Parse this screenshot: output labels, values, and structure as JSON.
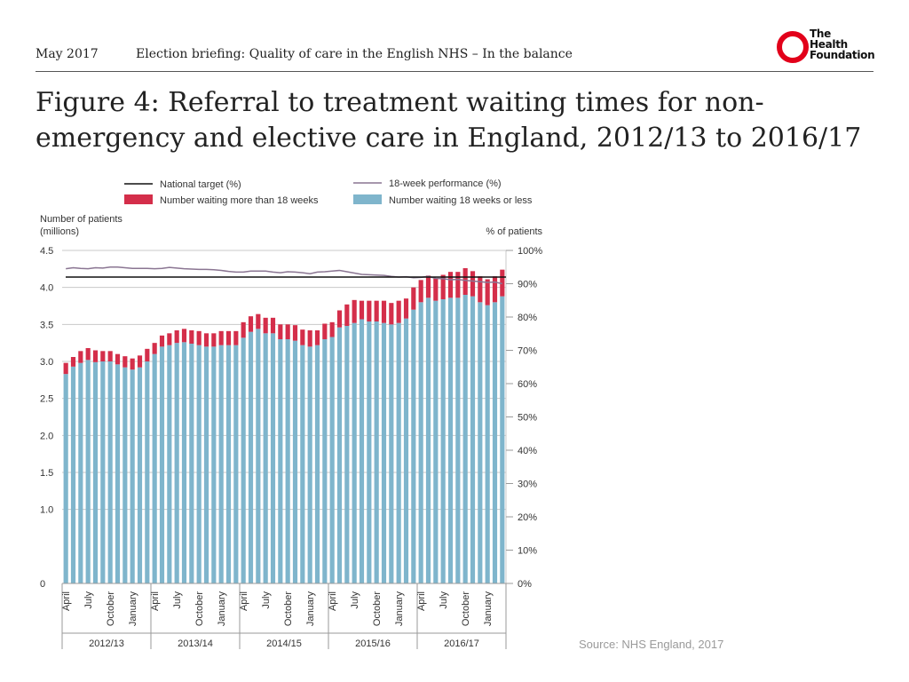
{
  "header": {
    "date": "May 2017",
    "title": "Election briefing: Quality of care in the English NHS – In the balance"
  },
  "logo": {
    "line1": "The",
    "line2": "Health",
    "line3": "Foundation"
  },
  "figure_title": "Figure 4: Referral to treatment waiting times for non-emergency and elective care in England, 2012/13 to 2016/17",
  "source": "Source: NHS England, 2017",
  "colors": {
    "under18": "#7fb5cc",
    "over18": "#d42e4a",
    "target": "#111111",
    "performance": "#8a7592",
    "grid": "#c8c8c8",
    "axis": "#9a9a9a"
  },
  "chart_data": {
    "type": "bar",
    "stacked": true,
    "months": [
      "April",
      "",
      "",
      "July",
      "",
      "",
      "October",
      "",
      "",
      "January",
      "",
      ""
    ],
    "years": [
      "2012/13",
      "2013/14",
      "2014/15",
      "2015/16",
      "2016/17"
    ],
    "left_axis_title": [
      "Number of patients",
      "(millions)"
    ],
    "right_axis_title": "% of patients",
    "left_ylim": [
      0,
      4.5
    ],
    "left_ticks": [
      "0",
      "1.0",
      "1.5",
      "2.0",
      "2.5",
      "3.0",
      "3.5",
      "4.0",
      "4.5"
    ],
    "left_tick_values": [
      0,
      1.0,
      1.5,
      2.0,
      2.5,
      3.0,
      3.5,
      4.0,
      4.5
    ],
    "right_ylim": [
      0,
      100
    ],
    "right_ticks": [
      "0%",
      "10%",
      "20%",
      "30%",
      "40%",
      "50%",
      "60%",
      "70%",
      "80%",
      "90%",
      "100%"
    ],
    "right_tick_values": [
      0,
      10,
      20,
      30,
      40,
      50,
      60,
      70,
      80,
      90,
      100
    ],
    "legend": {
      "target": "National target (%)",
      "performance": "18-week performance (%)",
      "over18": "Number waiting more than 18 weeks",
      "under18": "Number waiting 18 weeks or less"
    },
    "national_target": 92,
    "series": [
      {
        "name": "Number waiting 18 weeks or less",
        "unit": "millions",
        "values": [
          2.83,
          2.93,
          2.98,
          3.02,
          2.99,
          3.0,
          3.0,
          2.96,
          2.92,
          2.89,
          2.92,
          3.0,
          3.1,
          3.2,
          3.22,
          3.25,
          3.26,
          3.24,
          3.22,
          3.2,
          3.2,
          3.22,
          3.22,
          3.22,
          3.32,
          3.4,
          3.44,
          3.38,
          3.38,
          3.3,
          3.3,
          3.28,
          3.22,
          3.2,
          3.22,
          3.3,
          3.33,
          3.46,
          3.48,
          3.52,
          3.57,
          3.54,
          3.54,
          3.52,
          3.5,
          3.52,
          3.58,
          3.7,
          3.8,
          3.86,
          3.82,
          3.84,
          3.86,
          3.86,
          3.9,
          3.88,
          3.8,
          3.76,
          3.8,
          3.88
        ]
      },
      {
        "name": "Number waiting more than 18 weeks",
        "unit": "millions",
        "values": [
          0.15,
          0.13,
          0.16,
          0.16,
          0.16,
          0.14,
          0.14,
          0.14,
          0.15,
          0.15,
          0.16,
          0.17,
          0.15,
          0.15,
          0.16,
          0.17,
          0.18,
          0.18,
          0.19,
          0.18,
          0.18,
          0.19,
          0.19,
          0.19,
          0.21,
          0.21,
          0.2,
          0.21,
          0.21,
          0.2,
          0.2,
          0.21,
          0.21,
          0.22,
          0.2,
          0.21,
          0.2,
          0.23,
          0.29,
          0.31,
          0.25,
          0.28,
          0.28,
          0.3,
          0.29,
          0.3,
          0.27,
          0.3,
          0.3,
          0.3,
          0.3,
          0.33,
          0.35,
          0.35,
          0.36,
          0.34,
          0.35,
          0.35,
          0.35,
          0.36
        ]
      },
      {
        "name": "18-week performance (%)",
        "unit": "%",
        "axis": "right",
        "values": [
          94.5,
          94.8,
          94.6,
          94.5,
          94.8,
          94.7,
          95.0,
          95.0,
          94.8,
          94.6,
          94.6,
          94.6,
          94.5,
          94.6,
          94.9,
          94.7,
          94.5,
          94.4,
          94.3,
          94.3,
          94.2,
          94.0,
          93.7,
          93.5,
          93.5,
          93.8,
          93.8,
          93.8,
          93.5,
          93.3,
          93.6,
          93.5,
          93.3,
          93.0,
          93.5,
          93.6,
          93.8,
          94.0,
          93.6,
          93.2,
          92.8,
          92.7,
          92.6,
          92.5,
          92.2,
          92.0,
          92.1,
          91.8,
          91.9,
          92.2,
          91.6,
          91.5,
          91.2,
          91.3,
          91.0,
          90.8,
          90.6,
          90.4,
          90.5,
          90.0
        ]
      }
    ]
  }
}
